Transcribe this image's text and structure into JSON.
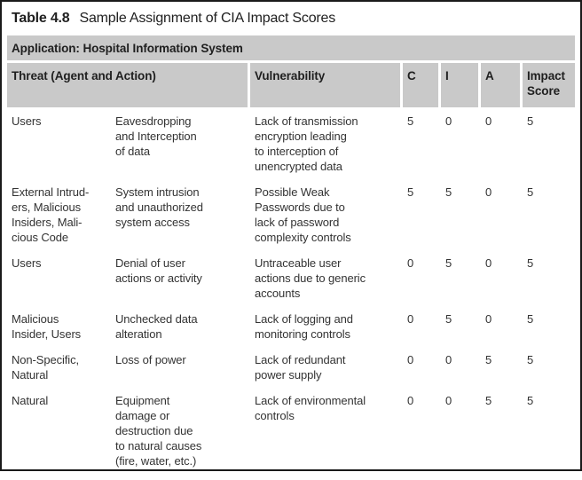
{
  "title": {
    "label": "Table 4.8",
    "text": "Sample Assignment of CIA Impact Scores"
  },
  "application_bar": "Application: Hospital Information System",
  "table": {
    "headers": {
      "threat": "Threat (Agent and Action)",
      "vulnerability": "Vulnerability",
      "c": "C",
      "i": "I",
      "a": "A",
      "impact": "Impact\nScore"
    },
    "rows": [
      {
        "agent": "Users",
        "action": "Eavesdropping\nand Interception\nof data",
        "vulnerability": "Lack of transmission\nencryption leading\nto interception of\nunencrypted data",
        "c": "5",
        "i": "0",
        "a": "0",
        "impact": "5"
      },
      {
        "agent": "External Intrud-\ners, Malicious\nInsiders, Mali-\ncious Code",
        "action": "System intrusion\nand unauthorized\nsystem access",
        "vulnerability": "Possible Weak\nPasswords due to\nlack of password\ncomplexity controls",
        "c": "5",
        "i": "5",
        "a": "0",
        "impact": "5"
      },
      {
        "agent": "Users",
        "action": "Denial of user\nactions or activity",
        "vulnerability": "Untraceable user\nactions due to generic\naccounts",
        "c": "0",
        "i": "5",
        "a": "0",
        "impact": "5"
      },
      {
        "agent": "Malicious\nInsider, Users",
        "action": "Unchecked data\nalteration",
        "vulnerability": "Lack of logging and\nmonitoring controls",
        "c": "0",
        "i": "5",
        "a": "0",
        "impact": "5"
      },
      {
        "agent": "Non-Specific,\nNatural",
        "action": "Loss of power",
        "vulnerability": "Lack of redundant\npower supply",
        "c": "0",
        "i": "0",
        "a": "5",
        "impact": "5"
      },
      {
        "agent": "Natural",
        "action": "Equipment\ndamage or\ndestruction due\nto natural causes\n(fire, water, etc.)",
        "vulnerability": "Lack of environmental\ncontrols",
        "c": "0",
        "i": "0",
        "a": "5",
        "impact": "5"
      }
    ]
  },
  "colors": {
    "band_gray": "#c9c9c9",
    "frame_border": "#1a1a1a",
    "body_text": "#333333",
    "header_text": "#1f1f1f",
    "background": "#ffffff"
  }
}
